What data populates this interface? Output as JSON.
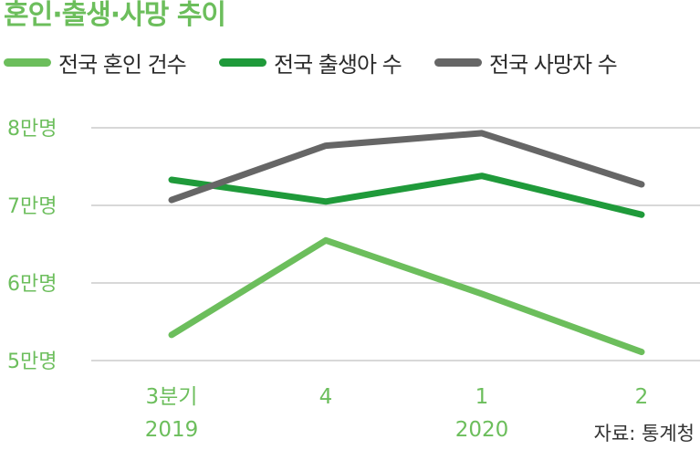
{
  "title": "혼인·출생·사망 추이",
  "source": "자료: 통계청",
  "colors": {
    "marriage": "#6cbe5c",
    "births": "#1f9a3a",
    "deaths": "#666666",
    "axis_text": "#6cbe5c",
    "grid": "#cccccc"
  },
  "chart_data": {
    "type": "line",
    "title": "혼인·출생·사망 추이",
    "x": [
      "3분기",
      "4",
      "1",
      "2"
    ],
    "x_year_labels": [
      "2019",
      "",
      "2020",
      ""
    ],
    "y_tick_values": [
      80000,
      70000,
      60000,
      50000
    ],
    "y_tick_labels": [
      "8만명",
      "7만명",
      "6만명",
      "5만명"
    ],
    "ylim": [
      50000,
      80000
    ],
    "grid": true,
    "legend": "top",
    "series": [
      {
        "name": "전국 혼인 건수",
        "values": [
          53300,
          65500,
          58600,
          51100
        ]
      },
      {
        "name": "전국 출생아 수",
        "values": [
          73300,
          70500,
          73800,
          68800
        ]
      },
      {
        "name": "전국 사망자 수",
        "values": [
          70700,
          77700,
          79300,
          72700
        ]
      }
    ]
  }
}
